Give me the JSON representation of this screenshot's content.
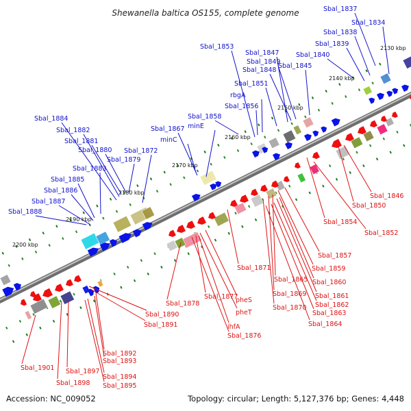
{
  "title": "Shewanella baltica OS155, complete genome",
  "footer": {
    "accession": "Accession: NC_009052",
    "summary": "Topology: circular; Length: 5,127,376 bp; Genes: 4,448"
  },
  "colors": {
    "forward_label": "#1010cc",
    "reverse_label": "#dd1111",
    "forward_gene": "#0a14e6",
    "reverse_gene": "#ee0f0f",
    "backbone": "#8a8a8a",
    "tick": "#1a7a1a"
  },
  "kbp_ticks": [
    "2130 kbp",
    "2140 kbp",
    "2150 kbp",
    "2160 kbp",
    "2170 kbp",
    "2180 kbp",
    "2190 kbp",
    "2200 kbp"
  ],
  "forward_genes": [
    "Sbal_1837",
    "Sbal_1834",
    "Sbal_1838",
    "Sbal_1839",
    "Sbal_1853",
    "Sbal_1847",
    "Sbal_1849",
    "Sbal_1840",
    "Sbal_1848",
    "Sbal_1845",
    "Sbal_1851",
    "rbgA",
    "Sbal_1856",
    "Sbal_1858",
    "minE",
    "Sbal_1867",
    "minC",
    "Sbal_1872",
    "Sbal_1884",
    "Sbal_1882",
    "Sbal_1881",
    "Sbal_1880",
    "Sbal_1879",
    "Sbal_1883",
    "Sbal_1885",
    "Sbal_1886",
    "Sbal_1887",
    "Sbal_1888"
  ],
  "reverse_genes": [
    "Sbal_1846",
    "Sbal_1850",
    "Sbal_1854",
    "Sbal_1852",
    "Sbal_1857",
    "Sbal_1859",
    "Sbal_1871",
    "Sbal_1865",
    "Sbal_1860",
    "Sbal_1869",
    "Sbal_1861",
    "Sbal_1862",
    "Sbal_1870",
    "Sbal_1863",
    "Sbal_1864",
    "pheS",
    "pheT",
    "Sbal_1877",
    "Sbal_1878",
    "ihfA",
    "Sbal_1876",
    "Sbal_1890",
    "Sbal_1891",
    "Sbal_1892",
    "Sbal_1893",
    "Sbal_1894",
    "Sbal_1895",
    "Sbal_1897",
    "Sbal_1898",
    "Sbal_1901"
  ]
}
